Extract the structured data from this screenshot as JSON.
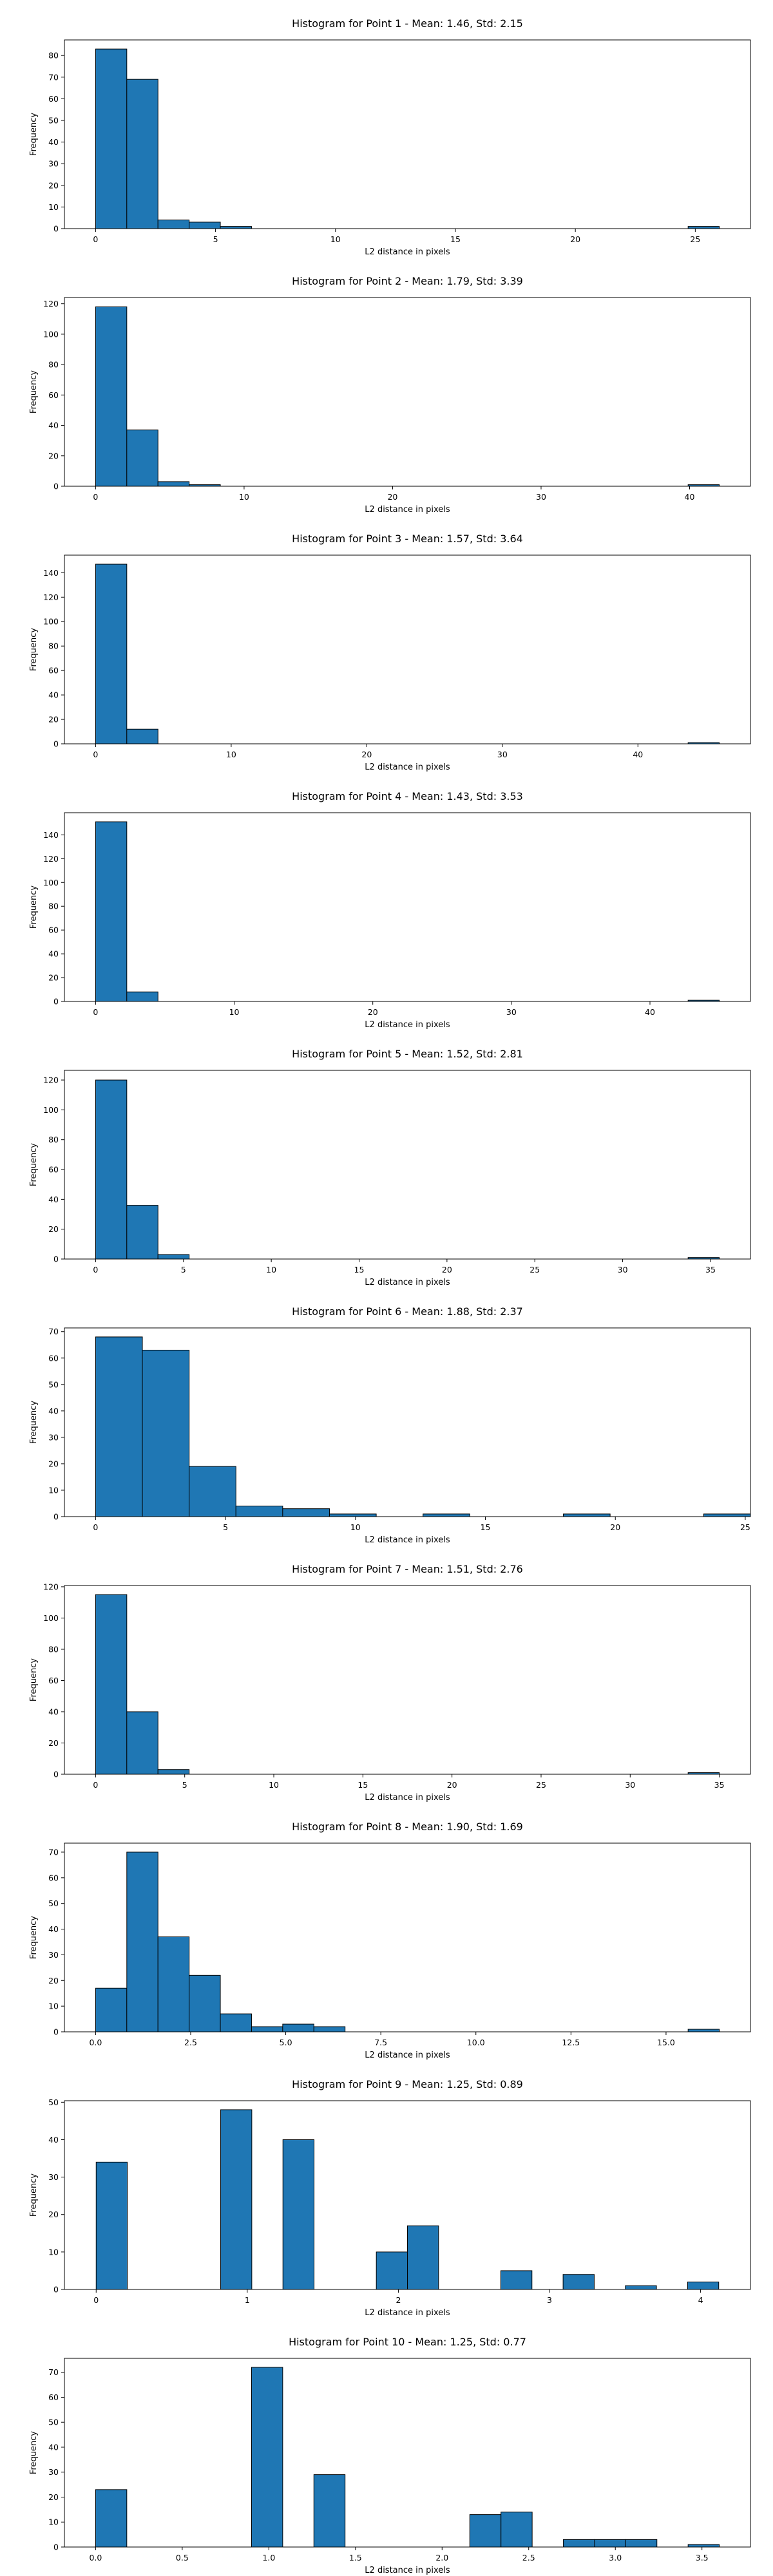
{
  "style": {
    "bar_fill": "#1f77b4",
    "bar_edge": "#000000"
  },
  "chart_data": [
    {
      "type": "bar",
      "title": "Histogram for Point 1 - Mean: 1.46, Std: 2.15",
      "xlabel": "L2 distance in pixels",
      "ylabel": "Frequency",
      "xlim": [
        -1.3,
        27.3
      ],
      "ylim": [
        0,
        87.2
      ],
      "xticks": [
        0,
        5,
        10,
        15,
        20,
        25
      ],
      "xtick_labels": [
        "0",
        "5",
        "10",
        "15",
        "20",
        "25"
      ],
      "yticks": [
        0,
        10,
        20,
        30,
        40,
        50,
        60,
        70,
        80
      ],
      "ytick_labels": [
        "0",
        "10",
        "20",
        "30",
        "40",
        "50",
        "60",
        "70",
        "80"
      ],
      "bin_edges": [
        0,
        1.3,
        2.6,
        3.9,
        5.2,
        6.5,
        24.7,
        26.0
      ],
      "values": [
        83,
        69,
        4,
        3,
        1,
        null,
        1
      ]
    },
    {
      "type": "bar",
      "title": "Histogram for Point 2 - Mean: 1.79, Std: 3.39",
      "xlabel": "L2 distance in pixels",
      "ylabel": "Frequency",
      "xlim": [
        -2.1,
        44.1
      ],
      "ylim": [
        0,
        124.1
      ],
      "xticks": [
        0,
        10,
        20,
        30,
        40
      ],
      "xtick_labels": [
        "0",
        "10",
        "20",
        "30",
        "40"
      ],
      "yticks": [
        0,
        20,
        40,
        60,
        80,
        100,
        120
      ],
      "ytick_labels": [
        "0",
        "20",
        "40",
        "60",
        "80",
        "100",
        "120"
      ],
      "bin_edges": [
        0,
        2.1,
        4.2,
        6.3,
        8.4,
        39.9,
        42.0
      ],
      "values": [
        118,
        37,
        3,
        1,
        null,
        1
      ]
    },
    {
      "type": "bar",
      "title": "Histogram for Point 3 - Mean: 1.57, Std: 3.64",
      "xlabel": "L2 distance in pixels",
      "ylabel": "Frequency",
      "xlim": [
        -2.3,
        48.3
      ],
      "ylim": [
        0,
        154.4
      ],
      "xticks": [
        0,
        10,
        20,
        30,
        40
      ],
      "xtick_labels": [
        "0",
        "10",
        "20",
        "30",
        "40"
      ],
      "yticks": [
        0,
        20,
        40,
        60,
        80,
        100,
        120,
        140
      ],
      "ytick_labels": [
        "0",
        "20",
        "40",
        "60",
        "80",
        "100",
        "120",
        "140"
      ],
      "bin_edges": [
        0,
        2.3,
        4.6,
        43.7,
        46.0
      ],
      "values": [
        147,
        12,
        null,
        1
      ]
    },
    {
      "type": "bar",
      "title": "Histogram for Point 4 - Mean: 1.43, Std: 3.53",
      "xlabel": "L2 distance in pixels",
      "ylabel": "Frequency",
      "xlim": [
        -2.25,
        47.25
      ],
      "ylim": [
        0,
        158.6
      ],
      "xticks": [
        0,
        10,
        20,
        30,
        40
      ],
      "xtick_labels": [
        "0",
        "10",
        "20",
        "30",
        "40"
      ],
      "yticks": [
        0,
        20,
        40,
        60,
        80,
        100,
        120,
        140
      ],
      "ytick_labels": [
        "0",
        "20",
        "40",
        "60",
        "80",
        "100",
        "120",
        "140"
      ],
      "bin_edges": [
        0,
        2.25,
        4.5,
        42.75,
        45.0
      ],
      "values": [
        151,
        8,
        null,
        1
      ]
    },
    {
      "type": "bar",
      "title": "Histogram for Point 5 - Mean: 1.52, Std: 2.81",
      "xlabel": "L2 distance in pixels",
      "ylabel": "Frequency",
      "xlim": [
        -1.775,
        37.275
      ],
      "ylim": [
        0,
        126.5
      ],
      "xticks": [
        0,
        5,
        10,
        15,
        20,
        25,
        30,
        35
      ],
      "xtick_labels": [
        "0",
        "5",
        "10",
        "15",
        "20",
        "25",
        "30",
        "35"
      ],
      "yticks": [
        0,
        20,
        40,
        60,
        80,
        100,
        120
      ],
      "ytick_labels": [
        "0",
        "20",
        "40",
        "60",
        "80",
        "100",
        "120"
      ],
      "bin_edges": [
        0,
        1.775,
        3.55,
        5.325,
        33.725,
        35.5
      ],
      "values": [
        120,
        36,
        3,
        null,
        1
      ]
    },
    {
      "type": "bar",
      "title": "Histogram for Point 6 - Mean: 1.88, Std: 2.37",
      "xlabel": "L2 distance in pixels",
      "ylabel": "Frequency",
      "xlim": [
        -1.2,
        25.2
      ],
      "ylim": [
        0,
        71.4
      ],
      "xticks": [
        0,
        5,
        10,
        15,
        20,
        25
      ],
      "xtick_labels": [
        "0",
        "5",
        "10",
        "15",
        "20",
        "25"
      ],
      "yticks": [
        0,
        10,
        20,
        30,
        40,
        50,
        60,
        70
      ],
      "ytick_labels": [
        "0",
        "10",
        "20",
        "30",
        "40",
        "50",
        "60",
        "70"
      ],
      "bin_edges": [
        0,
        1.8,
        3.6,
        5.4,
        7.2,
        9.0,
        10.8,
        12.6,
        14.4,
        16.2,
        18.0,
        19.8,
        21.6,
        23.4,
        25.2
      ],
      "values": [
        68,
        63,
        19,
        4,
        3,
        1,
        null,
        1,
        null,
        null,
        1,
        null,
        null,
        1
      ]
    },
    {
      "type": "bar",
      "title": "Histogram for Point 7 - Mean: 1.51, Std: 2.76",
      "xlabel": "L2 distance in pixels",
      "ylabel": "Frequency",
      "xlim": [
        -1.75,
        36.75
      ],
      "ylim": [
        0,
        120.8
      ],
      "xticks": [
        0,
        5,
        10,
        15,
        20,
        25,
        30,
        35
      ],
      "xtick_labels": [
        "0",
        "5",
        "10",
        "15",
        "20",
        "25",
        "30",
        "35"
      ],
      "yticks": [
        0,
        20,
        40,
        60,
        80,
        100,
        120
      ],
      "ytick_labels": [
        "0",
        "20",
        "40",
        "60",
        "80",
        "100",
        "120"
      ],
      "bin_edges": [
        0,
        1.75,
        3.5,
        5.25,
        33.25,
        35.0
      ],
      "values": [
        115,
        40,
        3,
        null,
        1
      ]
    },
    {
      "type": "bar",
      "title": "Histogram for Point 8 - Mean: 1.90, Std: 1.69",
      "xlabel": "L2 distance in pixels",
      "ylabel": "Frequency",
      "xlim": [
        -0.82,
        17.22
      ],
      "ylim": [
        0,
        73.5
      ],
      "xticks": [
        0,
        2.5,
        5,
        7.5,
        10,
        12.5,
        15
      ],
      "xtick_labels": [
        "0.0",
        "2.5",
        "5.0",
        "7.5",
        "10.0",
        "12.5",
        "15.0"
      ],
      "yticks": [
        0,
        10,
        20,
        30,
        40,
        50,
        60,
        70
      ],
      "ytick_labels": [
        "0",
        "10",
        "20",
        "30",
        "40",
        "50",
        "60",
        "70"
      ],
      "bin_edges": [
        0,
        0.82,
        1.64,
        2.46,
        3.28,
        4.1,
        4.92,
        5.74,
        6.56,
        15.58,
        16.4
      ],
      "values": [
        17,
        70,
        37,
        22,
        7,
        2,
        3,
        2,
        null,
        1
      ]
    },
    {
      "type": "bar",
      "title": "Histogram for Point 9 - Mean: 1.25, Std: 0.89",
      "xlabel": "L2 distance in pixels",
      "ylabel": "Frequency",
      "xlim": [
        -0.21,
        4.33
      ],
      "ylim": [
        0,
        50.4
      ],
      "xticks": [
        0,
        1,
        2,
        3,
        4
      ],
      "xtick_labels": [
        "0",
        "1",
        "2",
        "3",
        "4"
      ],
      "yticks": [
        0,
        10,
        20,
        30,
        40,
        50
      ],
      "ytick_labels": [
        "0",
        "10",
        "20",
        "30",
        "40",
        "50"
      ],
      "bin_edges": [
        0,
        0.206,
        0.824,
        1.03,
        1.236,
        1.442,
        1.854,
        2.06,
        2.266,
        2.678,
        2.884,
        3.09,
        3.296,
        3.502,
        3.708,
        3.914,
        4.12
      ],
      "values": [
        34,
        null,
        48,
        null,
        40,
        null,
        10,
        17,
        null,
        5,
        null,
        4,
        null,
        1,
        null,
        2
      ]
    },
    {
      "type": "bar",
      "title": "Histogram for Point 10 - Mean: 1.25, Std: 0.77",
      "xlabel": "L2 distance in pixels",
      "ylabel": "Frequency",
      "xlim": [
        -0.18,
        3.78
      ],
      "ylim": [
        0,
        75.6
      ],
      "xticks": [
        0,
        0.5,
        1,
        1.5,
        2,
        2.5,
        3,
        3.5
      ],
      "xtick_labels": [
        "0.0",
        "0.5",
        "1.0",
        "1.5",
        "2.0",
        "2.5",
        "3.0",
        "3.5"
      ],
      "yticks": [
        0,
        10,
        20,
        30,
        40,
        50,
        60,
        70
      ],
      "ytick_labels": [
        "0",
        "10",
        "20",
        "30",
        "40",
        "50",
        "60",
        "70"
      ],
      "bin_edges": [
        0,
        0.18,
        0.9,
        1.08,
        1.26,
        1.44,
        2.16,
        2.34,
        2.52,
        2.7,
        2.88,
        3.06,
        3.24,
        3.42,
        3.6
      ],
      "values": [
        23,
        null,
        72,
        null,
        29,
        null,
        13,
        14,
        null,
        3,
        3,
        3,
        null,
        1
      ]
    }
  ]
}
